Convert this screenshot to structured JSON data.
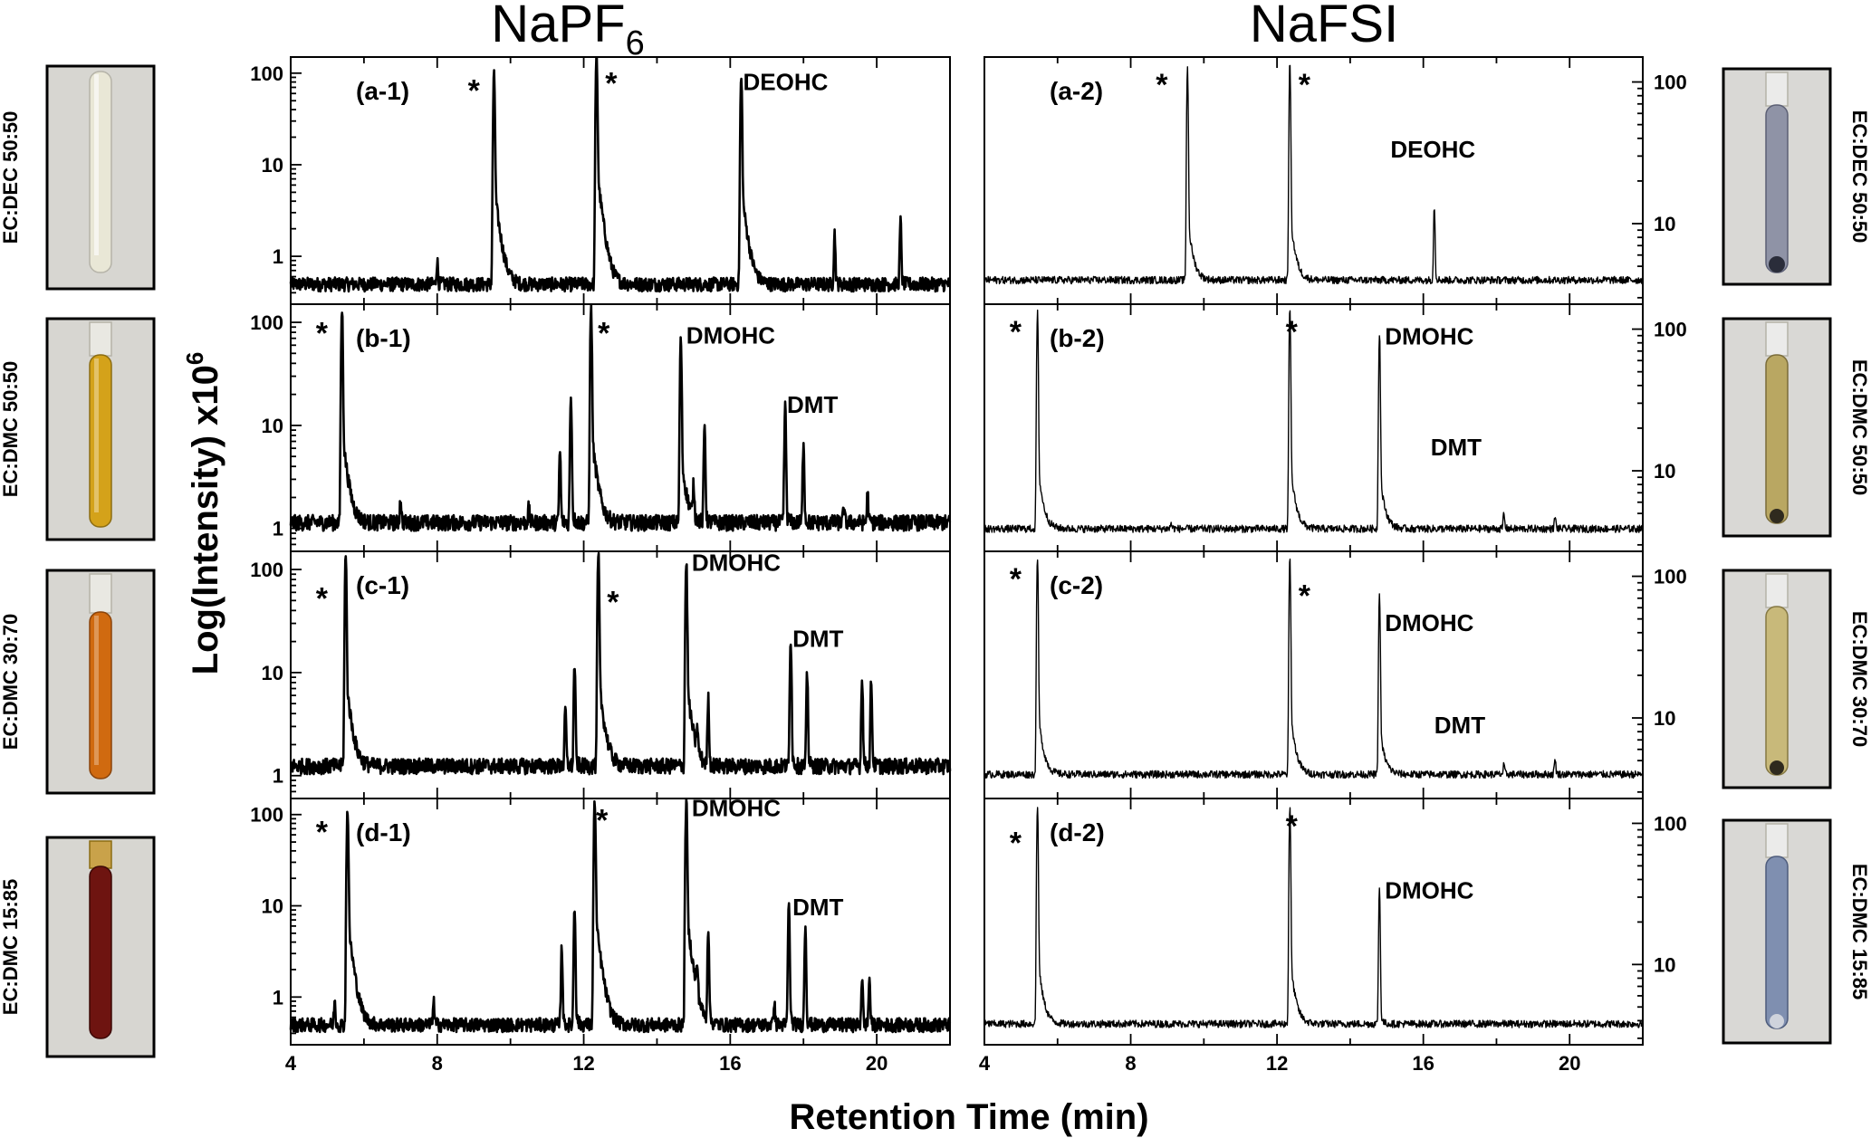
{
  "figure": {
    "left_title": "NaPF",
    "left_title_sub": "6",
    "right_title": "NaFSI",
    "ylabel": "Log(Intensity) x10",
    "ylabel_sup": "6",
    "xlabel": "Retention Time (min)"
  },
  "colors": {
    "trace": "#000000",
    "background": "#ffffff",
    "photo_bg": "#d7d6d1",
    "vial_ec_dec_napf6": "#e9e7d6",
    "vial_ec_dmc_5050_napf6": "#d4a21a",
    "vial_ec_dmc_3070_napf6": "#d06a10",
    "vial_ec_dmc_1585_napf6": "#6e1410",
    "vial_ec_dec_nafsi": "#8f93a6",
    "vial_ec_dmc_5050_nafsi": "#b9a762",
    "vial_ec_dmc_3070_nafsi": "#c8b97a",
    "vial_ec_dmc_1585_nafsi": "#7f8fb0"
  },
  "rows": [
    {
      "left_label": "EC:DEC 50:50",
      "right_label": "EC:DEC 50:50"
    },
    {
      "left_label": "EC:DMC 50:50",
      "right_label": "EC:DMC 50:50"
    },
    {
      "left_label": "EC:DMC 30:70",
      "right_label": "EC:DMC 30:70"
    },
    {
      "left_label": "EC:DMC 15:85",
      "right_label": "EC:DMC 15:85"
    }
  ],
  "chart_data": [
    {
      "type": "line",
      "id": "a-1",
      "panel_label": "(a-1)",
      "log_y": true,
      "xlim": [
        4,
        22
      ],
      "ylim": [
        0.3,
        150
      ],
      "x_ticks": [],
      "y_ticks": [
        "1",
        "10",
        "100"
      ],
      "baseline": 0.5,
      "peaks": [
        [
          8.0,
          0.9
        ],
        [
          9.55,
          90
        ],
        [
          12.35,
          150
        ],
        [
          16.3,
          85
        ],
        [
          18.85,
          1.8
        ],
        [
          20.65,
          2.4
        ]
      ],
      "star_annotations": [
        [
          9.0,
          75
        ],
        [
          12.75,
          90
        ]
      ],
      "peak_annotations": [
        {
          "text": "DEOHC",
          "x": 16.35,
          "y": 75
        }
      ]
    },
    {
      "type": "line",
      "id": "b-1",
      "panel_label": "(b-1)",
      "log_y": true,
      "xlim": [
        4,
        22
      ],
      "ylim": [
        0.6,
        150
      ],
      "x_ticks": [],
      "y_ticks": [
        "1",
        "10",
        "100"
      ],
      "baseline": 1.15,
      "peaks": [
        [
          5.4,
          130
        ],
        [
          7.0,
          2.0
        ],
        [
          10.5,
          1.6
        ],
        [
          11.35,
          5.5
        ],
        [
          11.65,
          20
        ],
        [
          12.2,
          130
        ],
        [
          14.65,
          65
        ],
        [
          15.0,
          2.5
        ],
        [
          15.3,
          10
        ],
        [
          17.5,
          15
        ],
        [
          18.0,
          7
        ],
        [
          19.1,
          1.6
        ],
        [
          19.75,
          2.2
        ]
      ],
      "star_annotations": [
        [
          4.85,
          90
        ],
        [
          12.55,
          90
        ]
      ],
      "peak_annotations": [
        {
          "text": "DMOHC",
          "x": 14.8,
          "y": 70
        },
        {
          "text": "DMT",
          "x": 17.55,
          "y": 15
        }
      ]
    },
    {
      "type": "line",
      "id": "c-1",
      "panel_label": "(c-1)",
      "log_y": true,
      "xlim": [
        4,
        22
      ],
      "ylim": [
        0.6,
        150
      ],
      "x_ticks": [],
      "y_ticks": [
        "1",
        "10",
        "100"
      ],
      "baseline": 1.25,
      "peaks": [
        [
          5.5,
          130
        ],
        [
          11.5,
          4.5
        ],
        [
          11.75,
          12
        ],
        [
          12.4,
          130
        ],
        [
          14.8,
          120
        ],
        [
          15.1,
          2.5
        ],
        [
          15.4,
          5.5
        ],
        [
          17.65,
          22
        ],
        [
          18.1,
          9.5
        ],
        [
          19.6,
          9
        ],
        [
          19.85,
          8
        ]
      ],
      "star_annotations": [
        [
          4.85,
          60
        ],
        [
          12.8,
          55
        ]
      ],
      "peak_annotations": [
        {
          "text": "DMOHC",
          "x": 14.95,
          "y": 110
        },
        {
          "text": "DMT",
          "x": 17.7,
          "y": 20
        }
      ]
    },
    {
      "type": "line",
      "id": "d-1",
      "panel_label": "(d-1)",
      "log_y": true,
      "xlim": [
        4,
        22
      ],
      "ylim": [
        0.3,
        150
      ],
      "x_ticks": [
        "4",
        "8",
        "12",
        "16",
        "20"
      ],
      "y_ticks": [
        "1",
        "10",
        "100"
      ],
      "baseline": 0.5,
      "peaks": [
        [
          5.2,
          0.9
        ],
        [
          5.55,
          115
        ],
        [
          7.9,
          0.9
        ],
        [
          11.4,
          3.5
        ],
        [
          11.75,
          9.5
        ],
        [
          12.3,
          140
        ],
        [
          14.8,
          140
        ],
        [
          15.1,
          1.6
        ],
        [
          15.4,
          5.5
        ],
        [
          17.2,
          0.9
        ],
        [
          17.6,
          9.5
        ],
        [
          18.05,
          5.8
        ],
        [
          19.6,
          1.7
        ],
        [
          19.8,
          1.6
        ]
      ],
      "star_annotations": [
        [
          4.85,
          75
        ],
        [
          12.5,
          100
        ]
      ],
      "peak_annotations": [
        {
          "text": "DMOHC",
          "x": 14.95,
          "y": 110
        },
        {
          "text": "DMT",
          "x": 17.7,
          "y": 9
        }
      ]
    },
    {
      "type": "line",
      "id": "a-2",
      "panel_label": "(a-2)",
      "log_y": true,
      "xlim": [
        4,
        22
      ],
      "ylim": [
        2.7,
        150
      ],
      "x_ticks": [],
      "y_ticks": [
        "10",
        "100"
      ],
      "baseline": 4.0,
      "peaks": [
        [
          9.55,
          120
        ],
        [
          12.35,
          130
        ],
        [
          16.3,
          13
        ]
      ],
      "star_annotations": [
        [
          8.85,
          105
        ],
        [
          12.75,
          105
        ]
      ],
      "peak_annotations": [
        {
          "text": "DEOHC",
          "x": 15.1,
          "y": 32
        }
      ]
    },
    {
      "type": "line",
      "id": "b-2",
      "panel_label": "(b-2)",
      "log_y": true,
      "xlim": [
        4,
        22
      ],
      "ylim": [
        2.7,
        150
      ],
      "x_ticks": [],
      "y_ticks": [
        "10",
        "100"
      ],
      "baseline": 3.9,
      "peaks": [
        [
          5.45,
          125
        ],
        [
          9.1,
          4.2
        ],
        [
          12.35,
          130
        ],
        [
          14.8,
          95
        ],
        [
          18.2,
          5.0
        ],
        [
          19.6,
          4.7
        ]
      ],
      "star_annotations": [
        [
          4.85,
          105
        ],
        [
          12.4,
          105
        ]
      ],
      "peak_annotations": [
        {
          "text": "DMOHC",
          "x": 14.95,
          "y": 85
        },
        {
          "text": "DMT",
          "x": 16.2,
          "y": 14
        }
      ]
    },
    {
      "type": "line",
      "id": "c-2",
      "panel_label": "(c-2)",
      "log_y": true,
      "xlim": [
        4,
        22
      ],
      "ylim": [
        2.7,
        150
      ],
      "x_ticks": [],
      "y_ticks": [
        "10",
        "100"
      ],
      "baseline": 4.0,
      "peaks": [
        [
          5.45,
          130
        ],
        [
          12.35,
          130
        ],
        [
          14.8,
          75
        ],
        [
          18.2,
          4.6
        ],
        [
          19.6,
          5.2
        ]
      ],
      "star_annotations": [
        [
          4.85,
          105
        ],
        [
          12.75,
          80
        ]
      ],
      "peak_annotations": [
        {
          "text": "DMOHC",
          "x": 14.95,
          "y": 45
        },
        {
          "text": "DMT",
          "x": 16.3,
          "y": 8.5
        }
      ]
    },
    {
      "type": "line",
      "id": "d-2",
      "panel_label": "(d-2)",
      "log_y": true,
      "xlim": [
        4,
        22
      ],
      "ylim": [
        2.7,
        150
      ],
      "x_ticks": [
        "4",
        "8",
        "12",
        "16",
        "20"
      ],
      "y_ticks": [
        "10",
        "100"
      ],
      "baseline": 3.8,
      "peaks": [
        [
          5.45,
          130
        ],
        [
          12.35,
          125
        ],
        [
          14.8,
          35
        ]
      ],
      "star_annotations": [
        [
          4.85,
          80
        ],
        [
          12.4,
          105
        ]
      ],
      "peak_annotations": [
        {
          "text": "DMOHC",
          "x": 14.95,
          "y": 32
        }
      ]
    }
  ]
}
